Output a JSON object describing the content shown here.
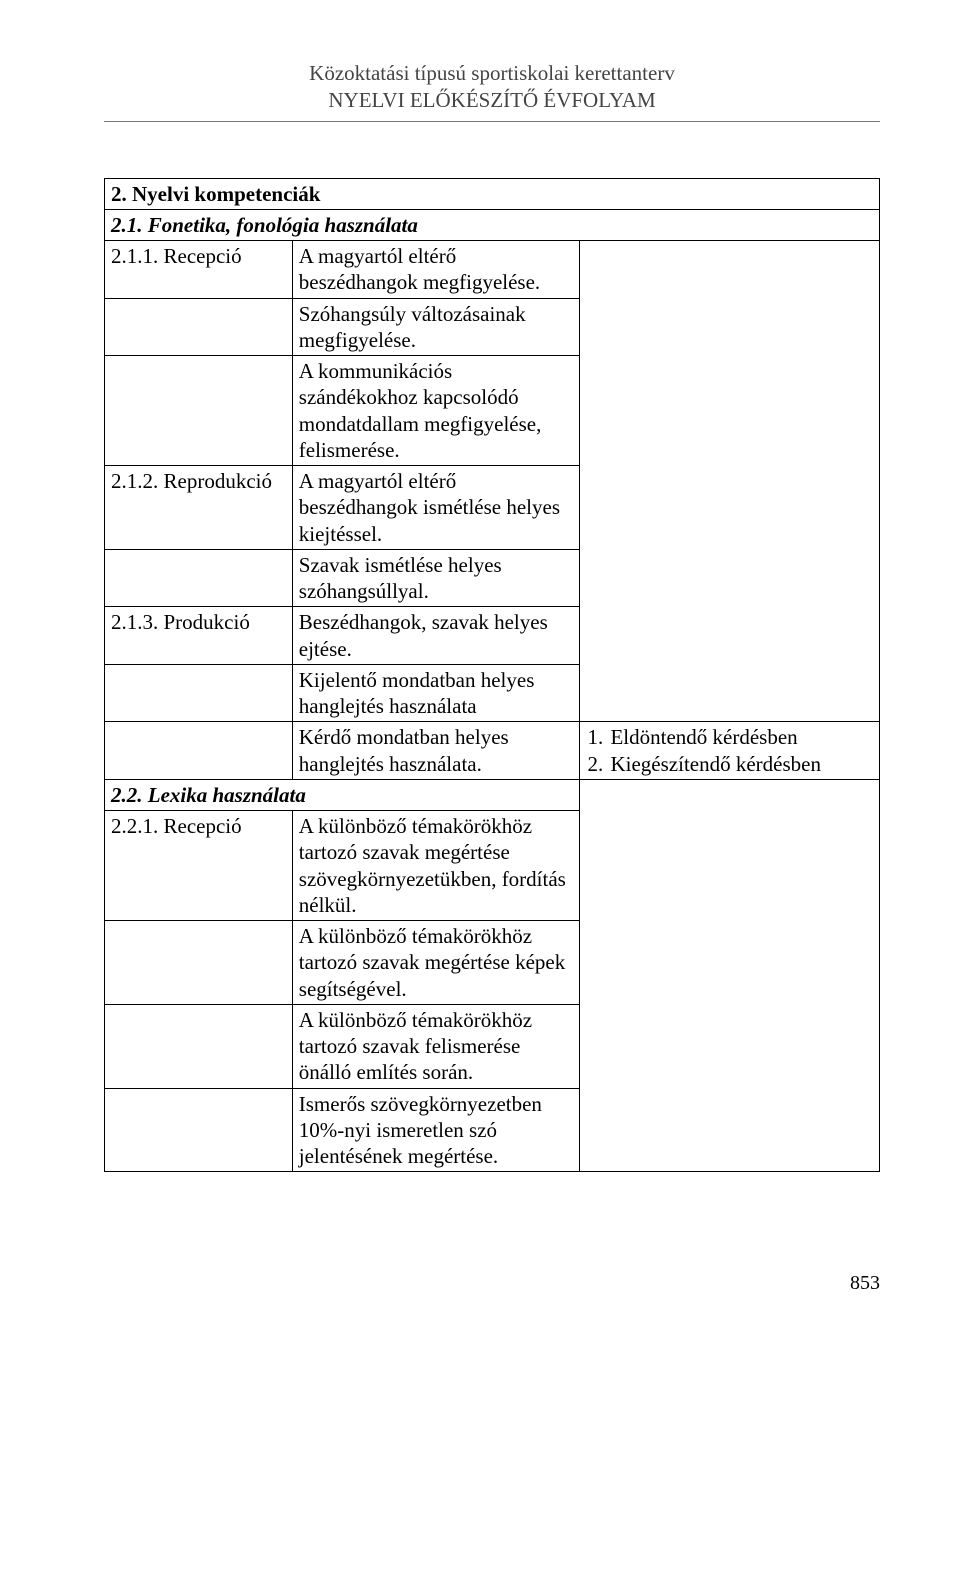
{
  "header": {
    "line1": "Közoktatási típusú sportiskolai kerettanterv",
    "line2": "NYELVI ELŐKÉSZÍTŐ ÉVFOLYAM"
  },
  "table": {
    "rows": [
      {
        "type": "header2span",
        "a": "2. Nyelvi kompetenciák"
      },
      {
        "type": "subheader2span",
        "a": "2.1. Fonetika, fonológia használata"
      },
      {
        "type": "labeled",
        "a": "2.1.1. Recepció",
        "b": "A magyartól eltérő beszédhangok megfigyelése.",
        "c_rowspan": 9
      },
      {
        "type": "blankA",
        "b": "Szóhangsúly változásainak megfigyelése."
      },
      {
        "type": "blankA",
        "b": "A kommunikációs szándékokhoz kapcsolódó mondatdallam megfigyelése, felismerése."
      },
      {
        "type": "labeled-noC",
        "a": "2.1.2. Reprodukció",
        "b": "A magyartól eltérő beszédhangok ismétlése helyes kiejtéssel."
      },
      {
        "type": "blankA",
        "b": "Szavak ismétlése helyes szóhangsúllyal."
      },
      {
        "type": "labeled-noC",
        "a": "2.1.3. Produkció",
        "b": "Beszédhangok, szavak helyes ejtése."
      },
      {
        "type": "blankA",
        "b": "Kijelentő mondatban helyes hanglejtés használata"
      },
      {
        "type": "b-c",
        "b": "Kérdő mondatban helyes hanglejtés használata.",
        "c_list": [
          "Eldöntendő kérdésben",
          "Kiegészítendő kérdésben"
        ]
      },
      {
        "type": "subheader2span-withC",
        "a": "2.2. Lexika használata",
        "c_rowspan": 5
      },
      {
        "type": "labeled-noC",
        "a": "2.2.1. Recepció",
        "b": "A különböző témakörökhöz tartozó szavak megértése szövegkörnyezetükben, fordítás nélkül."
      },
      {
        "type": "blankA",
        "b": "A különböző témakörökhöz tartozó szavak megértése képek segítségével."
      },
      {
        "type": "blankA",
        "b": "A különböző témakörökhöz tartozó szavak felismerése önálló említés során."
      },
      {
        "type": "blankA",
        "b": "Ismerős szövegkörnyezetben 10%-nyi ismeretlen szó jelentésének megértése."
      }
    ]
  },
  "page_number": "853"
}
